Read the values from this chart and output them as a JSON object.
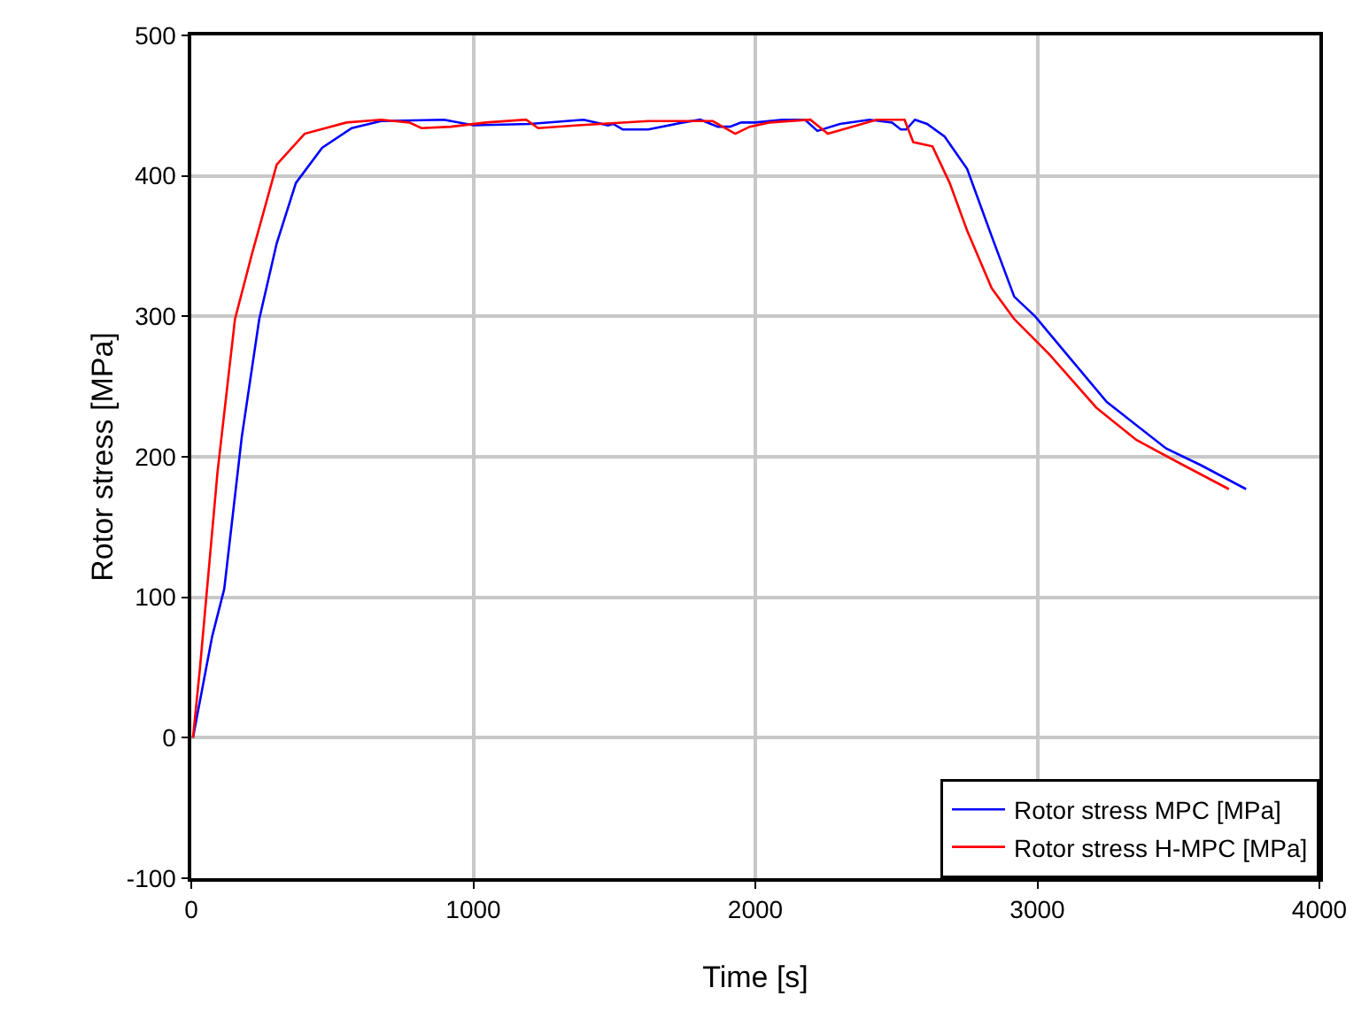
{
  "chart_data": {
    "type": "line",
    "xlabel": "Time [s]",
    "ylabel": "Rotor stress [MPa]",
    "xlim": [
      0,
      4000
    ],
    "xticks": [
      0,
      1000,
      2000,
      3000,
      4000
    ],
    "ylim": [
      -100,
      500
    ],
    "yticks": [
      -100,
      0,
      100,
      200,
      300,
      400,
      500
    ],
    "grid": true,
    "legend": "bottom right",
    "marker": "none",
    "line_style": "solid",
    "series": [
      {
        "name": "Rotor stress MPC [MPa]",
        "color": "#0000ff",
        "x": [
          6,
          74,
          117,
          179,
          241,
          303,
          371,
          464,
          569,
          673,
          896,
          1001,
          1200,
          1391,
          1478,
          1496,
          1530,
          1620,
          1743,
          1805,
          1867,
          1910,
          1950,
          2000,
          2096,
          2176,
          2220,
          2300,
          2405,
          2485,
          2516,
          2535,
          2566,
          2609,
          2671,
          2751,
          2838,
          2918,
          2992,
          3104,
          3246,
          3456,
          3580,
          3740
        ],
        "values": [
          0,
          72,
          106,
          214,
          298,
          352,
          395,
          420,
          434,
          439,
          440,
          436,
          437,
          440,
          436,
          437,
          433,
          433,
          438,
          440,
          435,
          435,
          438,
          438,
          440,
          440,
          432,
          437,
          440,
          438,
          433,
          433,
          440,
          437,
          428,
          405,
          357,
          314,
          300,
          273,
          239,
          206,
          194,
          177
        ]
      },
      {
        "name": "Rotor stress H-MPC [MPa]",
        "color": "#ff0000",
        "x": [
          6,
          31,
          93,
          155,
          216,
          303,
          402,
          550,
          673,
          773,
          816,
          921,
          1045,
          1187,
          1230,
          1372,
          1620,
          1849,
          1929,
          1980,
          2050,
          2195,
          2257,
          2343,
          2430,
          2504,
          2529,
          2560,
          2628,
          2689,
          2751,
          2838,
          2918,
          3042,
          3209,
          3351,
          3518,
          3679
        ],
        "values": [
          0,
          50,
          189,
          298,
          345,
          408,
          430,
          438,
          440,
          438,
          434,
          435,
          438,
          440,
          434,
          436,
          439,
          439,
          430,
          435,
          438,
          440,
          430,
          435,
          440,
          440,
          440,
          424,
          421,
          395,
          361,
          320,
          298,
          273,
          235,
          212,
          194,
          177
        ]
      }
    ]
  }
}
